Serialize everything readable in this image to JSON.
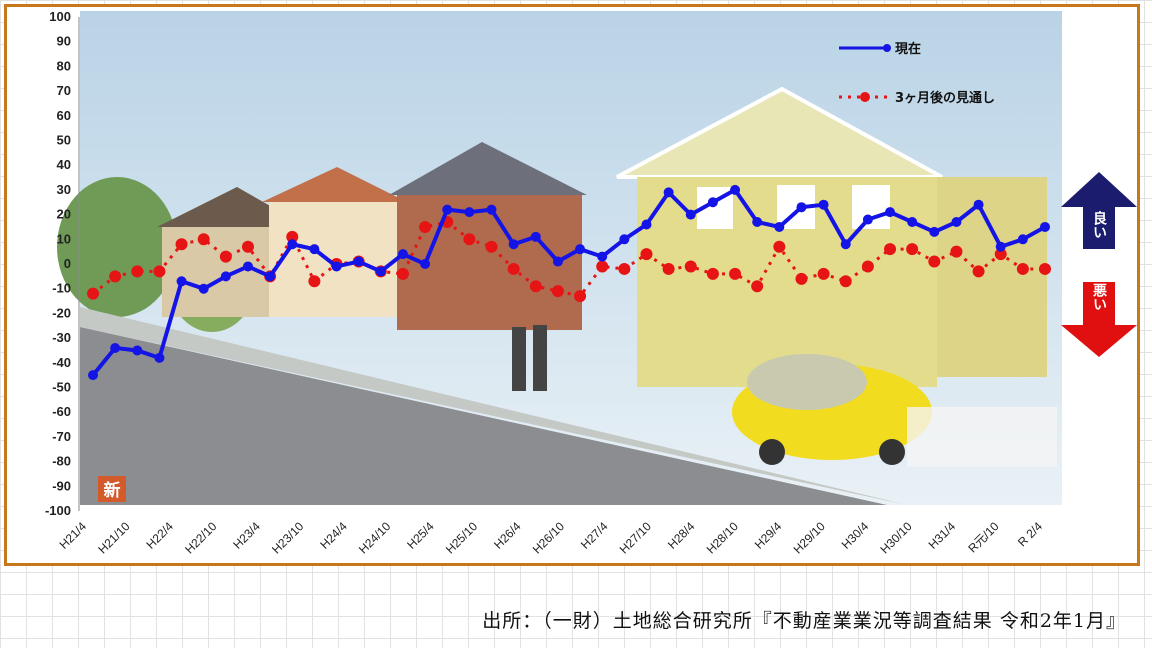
{
  "source_note": "出所：（一財）土地総合研究所『不動産業業況等調査結果 令和2年1月』",
  "badge": "新",
  "colors": {
    "current": "#1414e6",
    "forecast": "#e61414",
    "good_arrow": "#1c1c6e",
    "bad_arrow": "#e01010",
    "frame": "#c7771c"
  },
  "indicators": {
    "good": "良い",
    "bad": "悪い"
  },
  "chart_data": {
    "type": "line",
    "title": "",
    "xlabel": "",
    "ylabel": "",
    "ylim": [
      -100,
      100
    ],
    "y_ticks": [
      100,
      90,
      80,
      70,
      60,
      50,
      40,
      30,
      20,
      10,
      0,
      -10,
      -20,
      -30,
      -40,
      -50,
      -60,
      -70,
      -80,
      -90,
      -100
    ],
    "grid": false,
    "legend_position": "top-right",
    "x_tick_labels": [
      "H21/4",
      "H21/10",
      "H22/4",
      "H22/10",
      "H23/4",
      "H23/10",
      "H24/4",
      "H24/10",
      "H25/4",
      "H25/10",
      "H26/4",
      "H26/10",
      "H27/4",
      "H27/10",
      "H28/4",
      "H28/10",
      "H29/4",
      "H29/10",
      "H30/4",
      "H30/10",
      "H31/4",
      "R元/10",
      "R 2/4"
    ],
    "series": [
      {
        "name": "現在",
        "style": "solid-marker",
        "values": [
          -45,
          -34,
          -35,
          -38,
          -7,
          -10,
          -5,
          -1,
          -5,
          8,
          6,
          -1,
          1,
          -3,
          4,
          0,
          22,
          21,
          22,
          8,
          11,
          1,
          6,
          3,
          10,
          16,
          29,
          20,
          25,
          30,
          17,
          15,
          23,
          24,
          8,
          18,
          21,
          17,
          13,
          17,
          24,
          7,
          10,
          15
        ]
      },
      {
        "name": "3ヶ月後の見通し",
        "style": "dotted-marker",
        "values": [
          -12,
          -5,
          -3,
          -3,
          8,
          10,
          3,
          7,
          -5,
          11,
          -7,
          0,
          1,
          -3,
          -4,
          15,
          17,
          10,
          7,
          -2,
          -9,
          -11,
          -13,
          -1,
          -2,
          4,
          -2,
          -1,
          -4,
          -4,
          -9,
          7,
          -6,
          -4,
          -7,
          -1,
          6,
          6,
          1,
          5,
          -3,
          4,
          -2,
          -2
        ]
      }
    ]
  }
}
